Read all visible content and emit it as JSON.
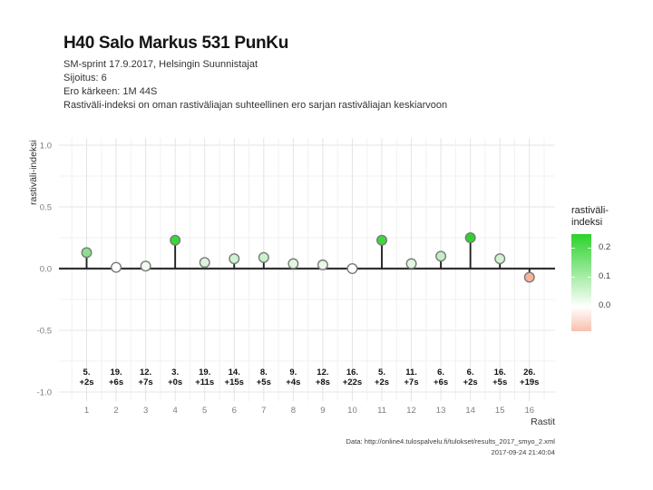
{
  "header": {
    "title": "H40 Salo Markus 531 PunKu",
    "subtitle_lines": [
      "SM-sprint 17.9.2017, Helsingin Suunnistajat",
      "Sijoitus: 6",
      "Ero kärkeen: 1M 44S",
      "Rastiväli-indeksi on oman rastiväliajan suhteellinen ero sarjan rastiväliajan keskiarvoon"
    ]
  },
  "chart_data": {
    "type": "lollipop",
    "title": "H40 Salo Markus 531 PunKu",
    "x": [
      1,
      2,
      3,
      4,
      5,
      6,
      7,
      8,
      9,
      10,
      11,
      12,
      13,
      14,
      15,
      16
    ],
    "values": [
      0.13,
      0.01,
      0.02,
      0.23,
      0.05,
      0.08,
      0.09,
      0.04,
      0.03,
      0.0,
      0.23,
      0.04,
      0.1,
      0.25,
      0.08,
      -0.07
    ],
    "point_colors": [
      "#8ce08c",
      "#ffffff",
      "#f2faf0",
      "#38d838",
      "#dcf5dc",
      "#cff2cf",
      "#cdf1cd",
      "#e1f7e1",
      "#e8f9e8",
      "#ffffff",
      "#3cd93c",
      "#e1f7e1",
      "#c2efc2",
      "#2ed42e",
      "#d2f3d2",
      "#f5b29e"
    ],
    "control_places": [
      "5.",
      "19.",
      "12.",
      "3.",
      "19.",
      "14.",
      "8.",
      "9.",
      "12.",
      "16.",
      "5.",
      "11.",
      "6.",
      "6.",
      "16.",
      "26."
    ],
    "control_time_diffs": [
      "+2s",
      "+6s",
      "+7s",
      "+0s",
      "+11s",
      "+15s",
      "+5s",
      "+4s",
      "+8s",
      "+22s",
      "+2s",
      "+7s",
      "+6s",
      "+2s",
      "+5s",
      "+19s"
    ],
    "xlabel": "Rastit",
    "ylabel": "rastiväli-indeksi",
    "ylim": [
      -1.0,
      1.0
    ],
    "ytick_labels": [
      "1.0",
      "0.5",
      "0.0",
      "-0.5",
      "-1.0"
    ],
    "ytick_values": [
      1.0,
      0.5,
      0.0,
      -0.5,
      -1.0
    ],
    "yticks_minor": [
      0.75,
      0.25,
      -0.25,
      -0.75
    ],
    "grid": true,
    "legend_position": "right"
  },
  "legend": {
    "title_lines": [
      "rastiväli-",
      "indeksi"
    ],
    "tick_labels": [
      "0.2",
      "0.1",
      "0.0"
    ],
    "gradient": {
      "top": "#2bd22b",
      "zero": "#ffffff",
      "bottom": "#f6c0ad",
      "zero_pos_pct": 75
    }
  },
  "footer": {
    "line1": "Data: http://online4.tulospalvelu.fi/tulokset/results_2017_smyo_2.xml",
    "line2": "2017-09-24 21:40:04"
  },
  "colors": {
    "stem": "#222222",
    "zero_line": "#333333",
    "point_stroke": "#7a7a7a",
    "grid_major": "#e4e4e4",
    "grid_minor": "#f1f1f1",
    "tick_text": "#7d7d7d",
    "control_label_text": "#111111",
    "axis_label_text": "#333333"
  }
}
